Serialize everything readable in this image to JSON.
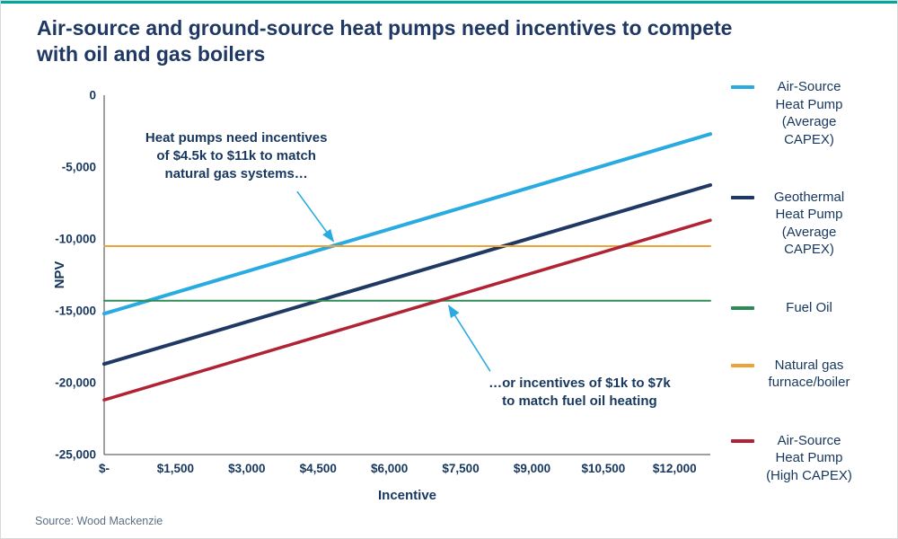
{
  "page": {
    "title": "Air-source and ground-source heat pumps need incentives to compete with oil and gas boilers",
    "source": "Source: Wood Mackenzie",
    "accent_color": "#00A79D",
    "title_color": "#1F3864"
  },
  "chart_data": {
    "type": "line",
    "title": "Air-source and ground-source heat pumps need incentives to compete with oil and gas boilers",
    "xlabel": "Incentive",
    "ylabel": "NPV",
    "xlim": [
      0,
      12750
    ],
    "ylim": [
      -25000,
      0
    ],
    "grid": false,
    "legend_position": "right",
    "x_ticks": [
      {
        "value": 0,
        "label": "$-"
      },
      {
        "value": 1500,
        "label": "$1,500"
      },
      {
        "value": 3000,
        "label": "$3,000"
      },
      {
        "value": 4500,
        "label": "$4,500"
      },
      {
        "value": 6000,
        "label": "$6,000"
      },
      {
        "value": 7500,
        "label": "$7,500"
      },
      {
        "value": 9000,
        "label": "$9,000"
      },
      {
        "value": 10500,
        "label": "$10,500"
      },
      {
        "value": 12000,
        "label": "$12,000"
      }
    ],
    "y_ticks": [
      {
        "value": 0,
        "label": "0"
      },
      {
        "value": -5000,
        "label": "-5,000"
      },
      {
        "value": -10000,
        "label": "-10,000"
      },
      {
        "value": -15000,
        "label": "-15,000"
      },
      {
        "value": -20000,
        "label": "-20,000"
      },
      {
        "value": -25000,
        "label": "-25,000"
      }
    ],
    "series": [
      {
        "name": "Air-Source Heat Pump (Average CAPEX)",
        "color": "#29ABE2",
        "stroke_width": 4,
        "x": [
          0,
          12750
        ],
        "y": [
          -15200,
          -2700
        ]
      },
      {
        "name": "Geothermal Heat Pump (Average CAPEX)",
        "color": "#1F3864",
        "stroke_width": 4,
        "x": [
          0,
          12750
        ],
        "y": [
          -18700,
          -6250
        ]
      },
      {
        "name": "Fuel Oil",
        "color": "#2E8B57",
        "stroke_width": 2,
        "x": [
          0,
          12750
        ],
        "y": [
          -14300,
          -14300
        ]
      },
      {
        "name": "Natural gas furnace/boiler",
        "color": "#EDA338",
        "stroke_width": 2,
        "x": [
          0,
          12750
        ],
        "y": [
          -10500,
          -10500
        ]
      },
      {
        "name": "Air-Source Heat Pump (High CAPEX)",
        "color": "#B02335",
        "stroke_width": 3.5,
        "x": [
          0,
          12750
        ],
        "y": [
          -21200,
          -8700
        ]
      }
    ],
    "annotations": [
      {
        "lines": [
          "Heat pumps need incentives",
          "of $4.5k to $11k to match",
          "natural gas systems…"
        ],
        "anchor": {
          "x": 2780,
          "y": -3250
        },
        "arrow_from": {
          "x": 4060,
          "y": -6700
        },
        "arrow_to": {
          "x": 4820,
          "y": -10150
        }
      },
      {
        "lines": [
          "…or incentives of $1k to $7k",
          "to match fuel oil heating"
        ],
        "anchor": {
          "x": 10000,
          "y": -20300
        },
        "arrow_from": {
          "x": 8120,
          "y": -19200
        },
        "arrow_to": {
          "x": 7250,
          "y": -14650
        }
      }
    ]
  }
}
